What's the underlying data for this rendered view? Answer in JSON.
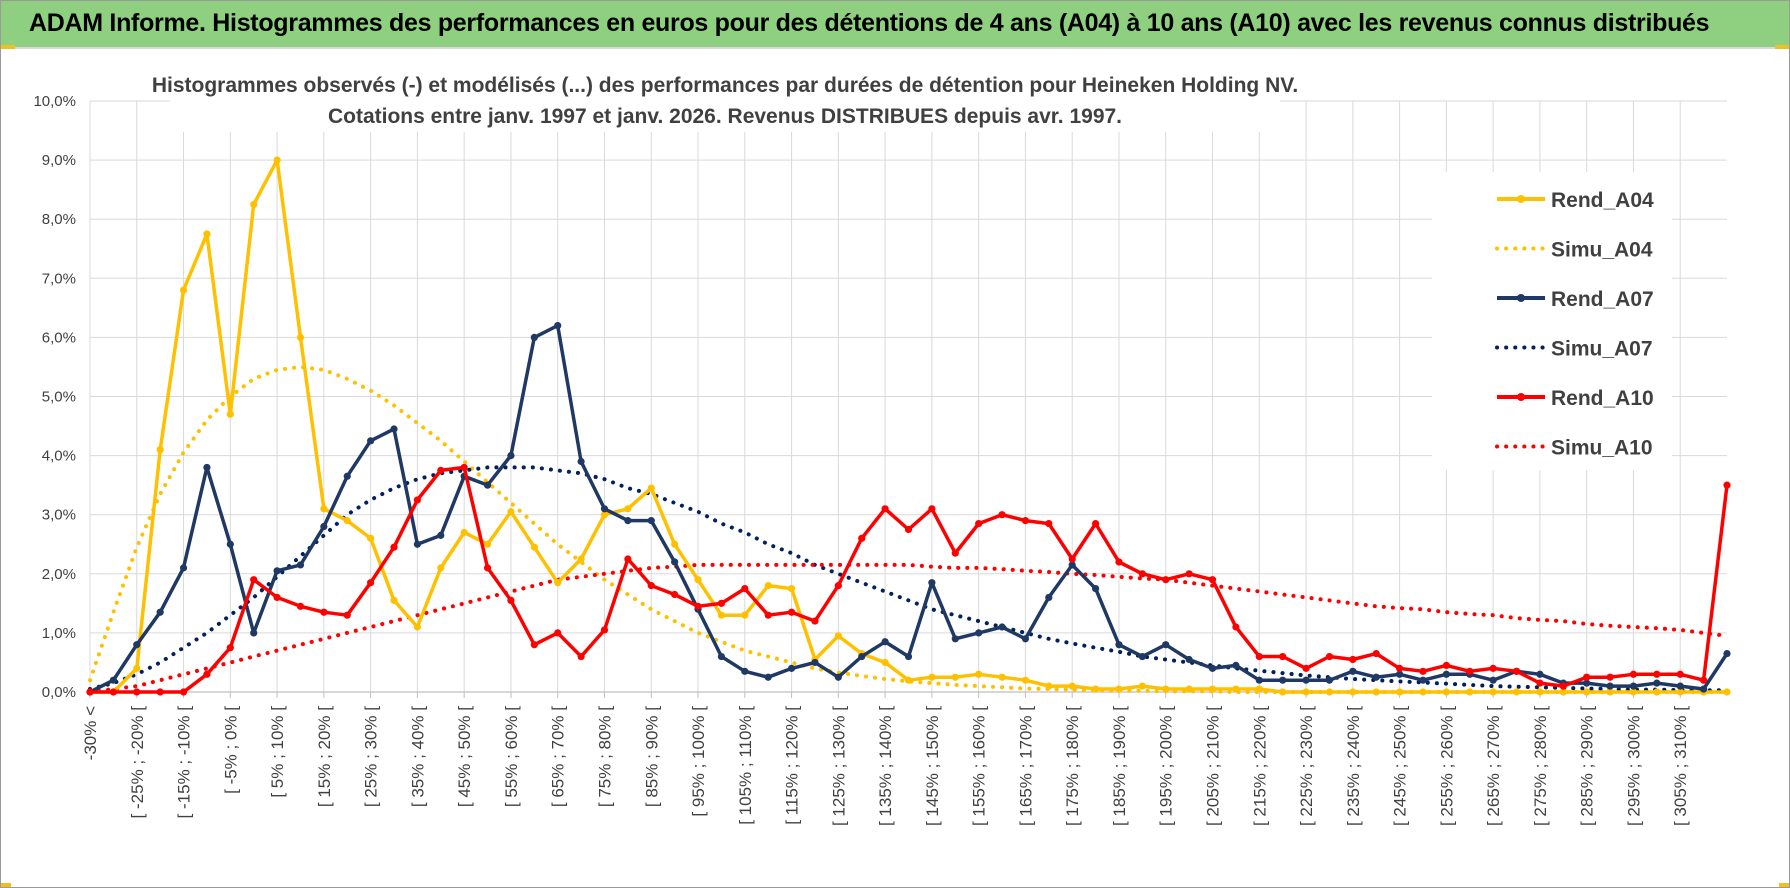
{
  "header": {
    "title": "ADAM Informe. Histogrammes des performances en euros pour des détentions de 4 ans (A04) à 10 ans (A10) avec les revenus connus distribués"
  },
  "chart_data": {
    "type": "line",
    "title_line1": "Histogrammes observés (-) et modélisés (...) des performances par durées de détention pour Heineken Holding NV.",
    "title_line2": "Cotations entre janv. 1997 et janv. 2026. Revenus DISTRIBUES depuis avr. 1997.",
    "xlabel": "",
    "ylabel": "",
    "ylim": [
      0,
      10
    ],
    "y_ticks": [
      "0,0%",
      "1,0%",
      "2,0%",
      "3,0%",
      "4,0%",
      "5,0%",
      "6,0%",
      "7,0%",
      "8,0%",
      "9,0%",
      "10,0%"
    ],
    "x_tick_labels": [
      "-30% <",
      "[ -25% ; -20% [",
      "[ -15% ; -10% [",
      "[ -5% ; 0% [",
      "[ 5% ; 10% [",
      "[ 15% ; 20% [",
      "[ 25% ; 30% [",
      "[ 35% ; 40% [",
      "[ 45% ; 50% [",
      "[ 55% ; 60% [",
      "[ 65% ; 70% [",
      "[ 75% ; 80% [",
      "[ 85% ; 90% [",
      "[ 95% ; 100% [",
      "[ 105% ; 110% [",
      "[ 115% ; 120% [",
      "[ 125% ; 130% [",
      "[ 135% ; 140% [",
      "[ 145% ; 150% [",
      "[ 155% ; 160% [",
      "[ 165% ; 170% [",
      "[ 175% ; 180% [",
      "[ 185% ; 190% [",
      "[ 195% ; 200% [",
      "[ 205% ; 210% [",
      "[ 215% ; 220% [",
      "[ 225% ; 230% [",
      "[ 235% ; 240% [",
      "[ 245% ; 250% [",
      "[ 255% ; 260% [",
      "[ 265% ; 270% [",
      "[ 275% ; 280% [",
      "[ 285% ; 290% [",
      "[ 295% ; 300% [",
      "[ 305% ; 310% ["
    ],
    "legend_position": "right",
    "grid": true,
    "series": [
      {
        "name": "Rend_A04",
        "style": "solid",
        "markers": true,
        "color": "#FFC000",
        "values": [
          0,
          0,
          0.4,
          4.1,
          6.8,
          7.75,
          4.7,
          8.25,
          9.0,
          6.0,
          3.1,
          2.9,
          2.6,
          1.55,
          1.1,
          2.1,
          2.7,
          2.5,
          3.05,
          2.45,
          1.85,
          2.25,
          3.0,
          3.1,
          3.45,
          2.5,
          1.9,
          1.3,
          1.3,
          1.8,
          1.75,
          0.55,
          0.95,
          0.65,
          0.5,
          0.2,
          0.25,
          0.25,
          0.3,
          0.25,
          0.2,
          0.1,
          0.1,
          0.05,
          0.05,
          0.1,
          0.05,
          0.05,
          0.05,
          0.05,
          0.05,
          0,
          0,
          0,
          0,
          0,
          0,
          0,
          0,
          0,
          0,
          0,
          0,
          0,
          0,
          0,
          0,
          0,
          0,
          0,
          0
        ]
      },
      {
        "name": "Simu_A04",
        "style": "dotted",
        "markers": false,
        "color": "#FFC000",
        "values": [
          0.2,
          1.35,
          2.45,
          3.35,
          4.05,
          4.6,
          5.0,
          5.3,
          5.45,
          5.5,
          5.45,
          5.3,
          5.1,
          4.85,
          4.55,
          4.25,
          3.9,
          3.55,
          3.2,
          2.85,
          2.5,
          2.2,
          1.9,
          1.65,
          1.4,
          1.2,
          1.0,
          0.85,
          0.7,
          0.6,
          0.5,
          0.4,
          0.33,
          0.27,
          0.22,
          0.18,
          0.15,
          0.12,
          0.1,
          0.08,
          0.06,
          0.05,
          0.04,
          0.03,
          0.02,
          0.02,
          0.01,
          0.01,
          0.01,
          0,
          0,
          0,
          0,
          0,
          0,
          0,
          0,
          0,
          0,
          0,
          0,
          0,
          0,
          0,
          0,
          0,
          0,
          0,
          0,
          0,
          0
        ]
      },
      {
        "name": "Rend_A07",
        "style": "solid",
        "markers": true,
        "color": "#1F3864",
        "values": [
          0,
          0.2,
          0.8,
          1.35,
          2.1,
          3.8,
          2.5,
          1.0,
          2.05,
          2.15,
          2.8,
          3.65,
          4.25,
          4.45,
          2.5,
          2.65,
          3.65,
          3.5,
          4.0,
          6.0,
          6.2,
          3.9,
          3.1,
          2.9,
          2.9,
          2.2,
          1.4,
          0.6,
          0.35,
          0.25,
          0.4,
          0.5,
          0.25,
          0.6,
          0.85,
          0.6,
          1.85,
          0.9,
          1.0,
          1.1,
          0.9,
          1.6,
          2.15,
          1.75,
          0.8,
          0.6,
          0.8,
          0.55,
          0.4,
          0.45,
          0.2,
          0.2,
          0.2,
          0.2,
          0.35,
          0.25,
          0.3,
          0.2,
          0.3,
          0.3,
          0.2,
          0.35,
          0.3,
          0.15,
          0.15,
          0.1,
          0.1,
          0.15,
          0.1,
          0.05,
          0.65
        ]
      },
      {
        "name": "Simu_A07",
        "style": "dotted",
        "markers": false,
        "color": "#002060",
        "values": [
          0.05,
          0.15,
          0.3,
          0.5,
          0.75,
          1.0,
          1.3,
          1.6,
          1.95,
          2.3,
          2.65,
          3.0,
          3.25,
          3.45,
          3.6,
          3.7,
          3.75,
          3.8,
          3.8,
          3.8,
          3.75,
          3.7,
          3.6,
          3.45,
          3.35,
          3.2,
          3.05,
          2.85,
          2.7,
          2.5,
          2.35,
          2.15,
          2.0,
          1.85,
          1.7,
          1.55,
          1.4,
          1.3,
          1.2,
          1.1,
          1.0,
          0.9,
          0.82,
          0.75,
          0.68,
          0.6,
          0.55,
          0.5,
          0.45,
          0.4,
          0.36,
          0.32,
          0.28,
          0.25,
          0.22,
          0.2,
          0.18,
          0.16,
          0.14,
          0.12,
          0.1,
          0.09,
          0.08,
          0.07,
          0.06,
          0.05,
          0.04,
          0.04,
          0.03,
          0.03,
          0.03
        ]
      },
      {
        "name": "Rend_A10",
        "style": "solid",
        "markers": true,
        "color": "#FF0000",
        "values": [
          0,
          0,
          0,
          0,
          0,
          0.3,
          0.75,
          1.9,
          1.6,
          1.45,
          1.35,
          1.3,
          1.85,
          2.45,
          3.25,
          3.75,
          3.8,
          2.1,
          1.55,
          0.8,
          1.0,
          0.6,
          1.05,
          2.25,
          1.8,
          1.65,
          1.45,
          1.5,
          1.75,
          1.3,
          1.35,
          1.2,
          1.8,
          2.6,
          3.1,
          2.75,
          3.1,
          2.35,
          2.85,
          3.0,
          2.9,
          2.85,
          2.25,
          2.85,
          2.2,
          2.0,
          1.9,
          2.0,
          1.9,
          1.1,
          0.6,
          0.6,
          0.4,
          0.6,
          0.55,
          0.65,
          0.4,
          0.35,
          0.45,
          0.35,
          0.4,
          0.35,
          0.15,
          0.1,
          0.25,
          0.25,
          0.3,
          0.3,
          0.3,
          0.2,
          3.5
        ]
      },
      {
        "name": "Simu_A10",
        "style": "dotted",
        "markers": false,
        "color": "#FF0000",
        "values": [
          0,
          0.05,
          0.1,
          0.2,
          0.3,
          0.4,
          0.5,
          0.6,
          0.7,
          0.8,
          0.9,
          1.0,
          1.1,
          1.2,
          1.3,
          1.4,
          1.5,
          1.6,
          1.7,
          1.8,
          1.9,
          1.95,
          2.0,
          2.05,
          2.1,
          2.12,
          2.15,
          2.15,
          2.15,
          2.15,
          2.15,
          2.15,
          2.15,
          2.15,
          2.15,
          2.15,
          2.12,
          2.1,
          2.1,
          2.08,
          2.05,
          2.03,
          2.0,
          1.98,
          1.95,
          1.92,
          1.9,
          1.85,
          1.8,
          1.75,
          1.7,
          1.65,
          1.6,
          1.55,
          1.5,
          1.45,
          1.42,
          1.4,
          1.35,
          1.32,
          1.3,
          1.25,
          1.22,
          1.2,
          1.15,
          1.12,
          1.1,
          1.08,
          1.05,
          1.0,
          0.95
        ]
      }
    ]
  }
}
